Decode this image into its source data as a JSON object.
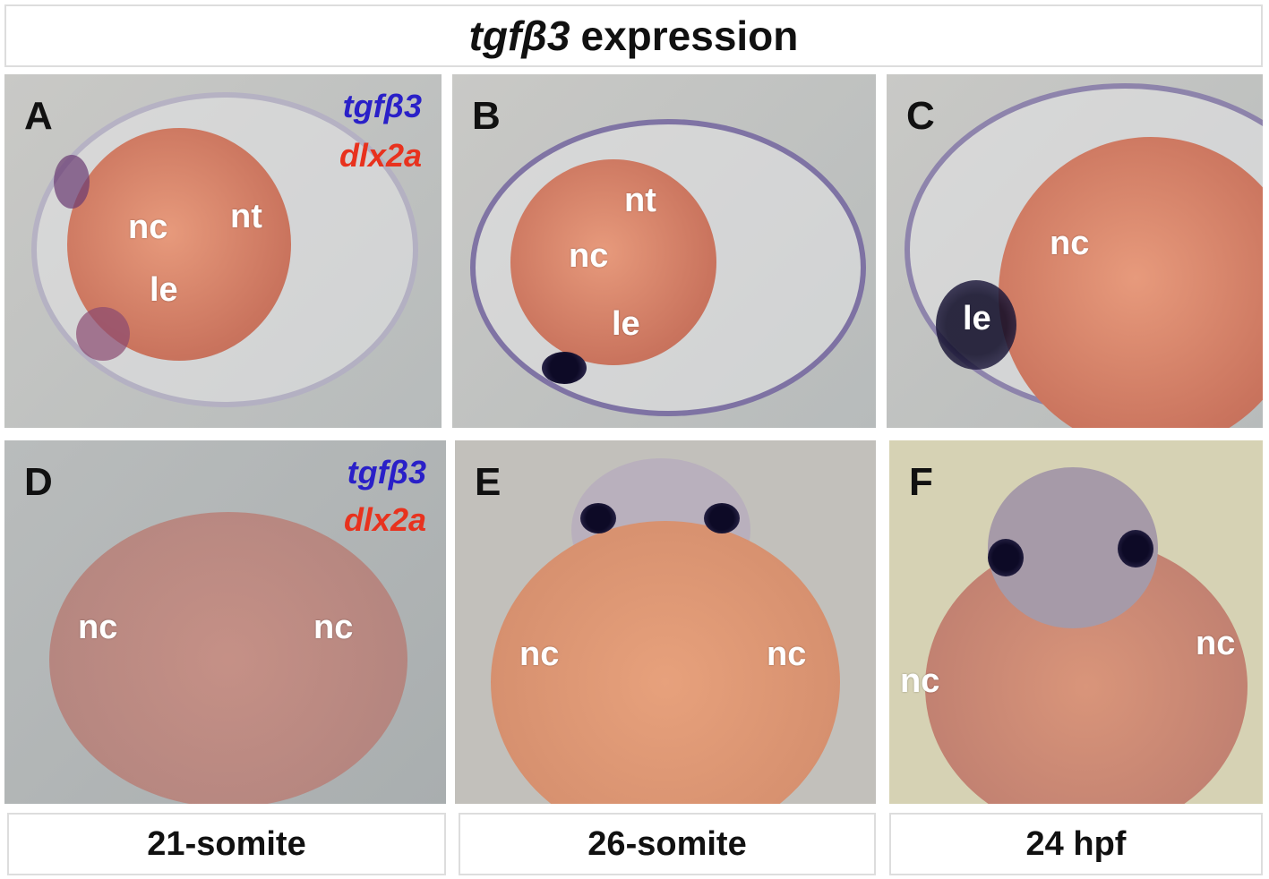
{
  "title": {
    "gene": "tgfβ3",
    "text": "expression"
  },
  "legend": {
    "probe1": "tgfβ3",
    "probe1_color": "#2a20c8",
    "probe2": "dlx2a",
    "probe2_color": "#e8321e"
  },
  "panels": [
    {
      "letter": "A",
      "labels": [
        "nc",
        "nt",
        "le"
      ]
    },
    {
      "letter": "B",
      "labels": [
        "nt",
        "nc",
        "le"
      ]
    },
    {
      "letter": "C",
      "labels": [
        "nc",
        "le"
      ]
    },
    {
      "letter": "D",
      "labels": [
        "nc",
        "nc"
      ]
    },
    {
      "letter": "E",
      "labels": [
        "nc",
        "nc"
      ]
    },
    {
      "letter": "F",
      "labels": [
        "nc",
        "nc"
      ]
    }
  ],
  "stages": [
    "21-somite",
    "26-somite",
    "24 hpf"
  ]
}
